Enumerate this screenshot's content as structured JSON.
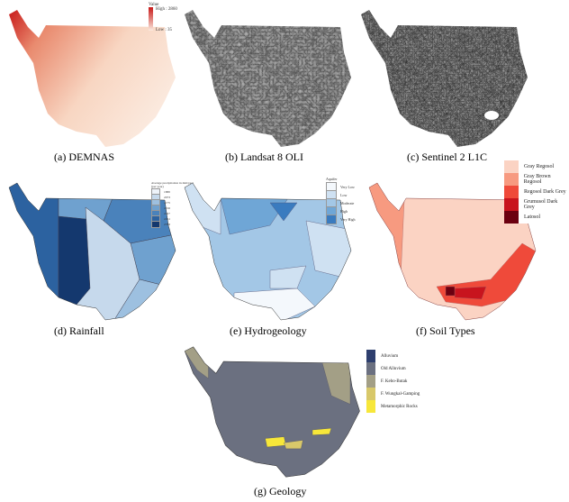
{
  "panels": {
    "a": {
      "caption": "(a)  DEMNAS",
      "legend_title": "Value",
      "high": "High : 2860",
      "low": "Low : 35",
      "colors": {
        "high": "#c81a1a",
        "low": "#fbe9dc"
      }
    },
    "b": {
      "caption": "(b)  Landsat 8 OLI"
    },
    "c": {
      "caption": "(c)  Sentinel 2 L1C"
    },
    "d": {
      "caption": "(d)  Rainfall",
      "legend_title": "Average precipitation in mm/year (per year)",
      "classes": [
        {
          "label": "1880",
          "color": "#eef3fa"
        },
        {
          "label": "2073",
          "color": "#c6d9ec"
        },
        {
          "label": "2175",
          "color": "#9dc0e0"
        },
        {
          "label": "2216",
          "color": "#6fa1cf"
        },
        {
          "label": "2227",
          "color": "#4a82bb"
        },
        {
          "label": "2251",
          "color": "#2c62a0"
        },
        {
          "label": "2788",
          "color": "#14386e"
        }
      ]
    },
    "e": {
      "caption": "(e)  Hydrogeology",
      "legend_title": "Aquifer",
      "classes": [
        {
          "label": "Very Low",
          "color": "#f4f8fc"
        },
        {
          "label": "Low",
          "color": "#cfe1f2"
        },
        {
          "label": "Moderate",
          "color": "#a3c7e6"
        },
        {
          "label": "High",
          "color": "#6fa6d6"
        },
        {
          "label": "Very High",
          "color": "#3a7bbf"
        }
      ]
    },
    "f": {
      "caption": "(f)  Soil Types",
      "classes": [
        {
          "label": "Gray Regosol",
          "color": "#fbd3c3"
        },
        {
          "label": "Gray Brown Regosol",
          "color": "#f79a80"
        },
        {
          "label": "Regosol Dark Grey",
          "color": "#ef4a3a"
        },
        {
          "label": "Grumusol Dark Grey",
          "color": "#c8141e"
        },
        {
          "label": "Latosol",
          "color": "#6b0010"
        }
      ]
    },
    "g": {
      "caption": "(g)  Geology",
      "classes": [
        {
          "label": "Alluvium",
          "color": "#2e3f6e"
        },
        {
          "label": "Old Alluvium",
          "color": "#6b7080"
        },
        {
          "label": "F. Kebo-Butak",
          "color": "#a39f86"
        },
        {
          "label": "F. Wungkal-Gamping",
          "color": "#d8c86a"
        },
        {
          "label": "Metamorphic Rocks",
          "color": "#f7e73a"
        }
      ]
    }
  }
}
